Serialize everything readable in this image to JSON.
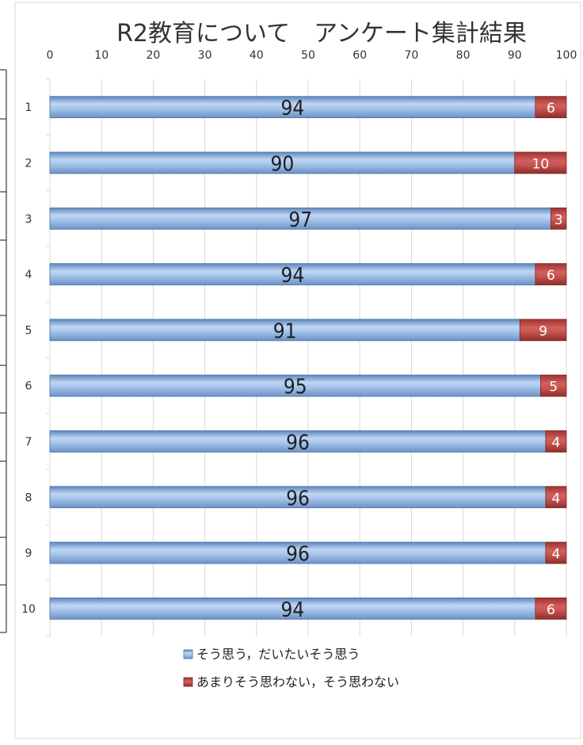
{
  "chart_data": {
    "type": "bar",
    "orientation": "horizontal",
    "stacked": true,
    "title": "R2教育について　アンケート集計結果",
    "categories": [
      "1",
      "2",
      "3",
      "4",
      "5",
      "6",
      "7",
      "8",
      "9",
      "10"
    ],
    "series": [
      {
        "name": "そう思う，だいたいそう思う",
        "values": [
          94,
          90,
          97,
          94,
          91,
          95,
          96,
          96,
          96,
          94
        ],
        "color": "#8fb4e3"
      },
      {
        "name": "あまりそう思わない，そう思わない",
        "values": [
          6,
          10,
          3,
          6,
          9,
          5,
          4,
          4,
          4,
          6
        ],
        "color": "#c0504d"
      }
    ],
    "xlim": [
      0,
      100
    ],
    "xticks": [
      0,
      10,
      20,
      30,
      40,
      50,
      60,
      70,
      80,
      90,
      100
    ],
    "x_axis_position": "top",
    "grid": true,
    "legend_position": "bottom",
    "data_labels": true
  }
}
